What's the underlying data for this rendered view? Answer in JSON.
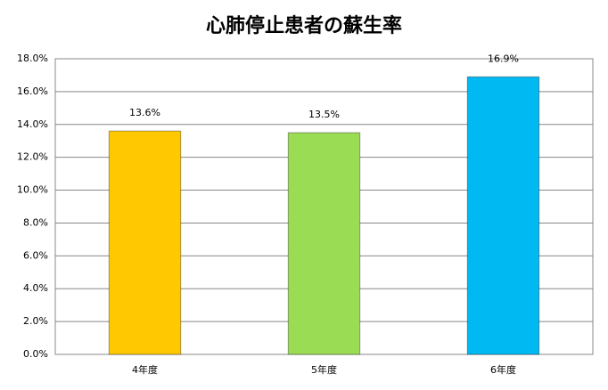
{
  "chart_data": {
    "type": "bar",
    "title": "心肺停止患者の蘇生率",
    "categories": [
      "4年度",
      "5年度",
      "6年度"
    ],
    "values": [
      13.6,
      13.5,
      16.9
    ],
    "value_labels": [
      "13.6%",
      "13.5%",
      "16.9%"
    ],
    "colors": [
      "#ffc800",
      "#9bdc55",
      "#00b9f2"
    ],
    "ylim": [
      0,
      18
    ],
    "yticks": [
      {
        "value": 0,
        "label": "0.0%"
      },
      {
        "value": 2,
        "label": "2.0%"
      },
      {
        "value": 4,
        "label": "4.0%"
      },
      {
        "value": 6,
        "label": "6.0%"
      },
      {
        "value": 8,
        "label": "8.0%"
      },
      {
        "value": 10,
        "label": "10.0%"
      },
      {
        "value": 12,
        "label": "12.0%"
      },
      {
        "value": 14,
        "label": "14.0%"
      },
      {
        "value": 16,
        "label": "16.0%"
      },
      {
        "value": 18,
        "label": "18.0%"
      }
    ],
    "grid": true
  }
}
